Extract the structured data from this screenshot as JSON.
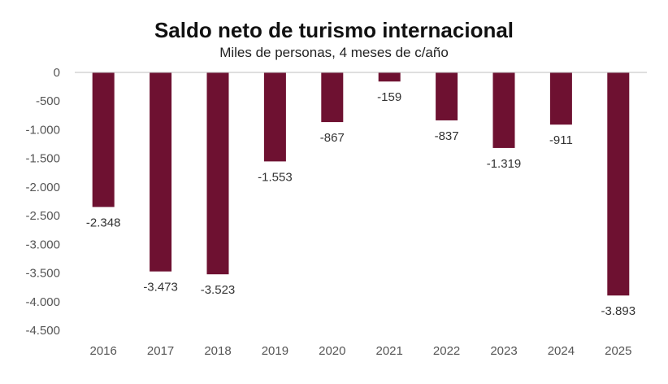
{
  "chart_data": {
    "type": "bar",
    "title": "Saldo neto de turismo internacional",
    "subtitle": "Miles de personas, 4 meses de c/año",
    "xlabel": "",
    "ylabel": "",
    "categories": [
      "2016",
      "2017",
      "2018",
      "2019",
      "2020",
      "2021",
      "2022",
      "2023",
      "2024",
      "2025"
    ],
    "values": [
      -2348,
      -3473,
      -3523,
      -1553,
      -867,
      -159,
      -837,
      -1319,
      -911,
      -3893
    ],
    "data_labels": [
      "-2.348",
      "-3.473",
      "-3.523",
      "-1.553",
      "-867",
      "-159",
      "-837",
      "-1.319",
      "-911",
      "-3.893"
    ],
    "ylim": [
      -4500,
      0
    ],
    "yticks": [
      0,
      -500,
      -1000,
      -1500,
      -2000,
      -2500,
      -3000,
      -3500,
      -4000,
      -4500
    ],
    "ytick_labels": [
      "0",
      "-500",
      "-1.000",
      "-1.500",
      "-2.000",
      "-2.500",
      "-3.000",
      "-3.500",
      "-4.000",
      "-4.500"
    ],
    "grid": false,
    "legend": "none",
    "bar_color": "#6e1131",
    "axis_color": "#bfbfbf"
  }
}
